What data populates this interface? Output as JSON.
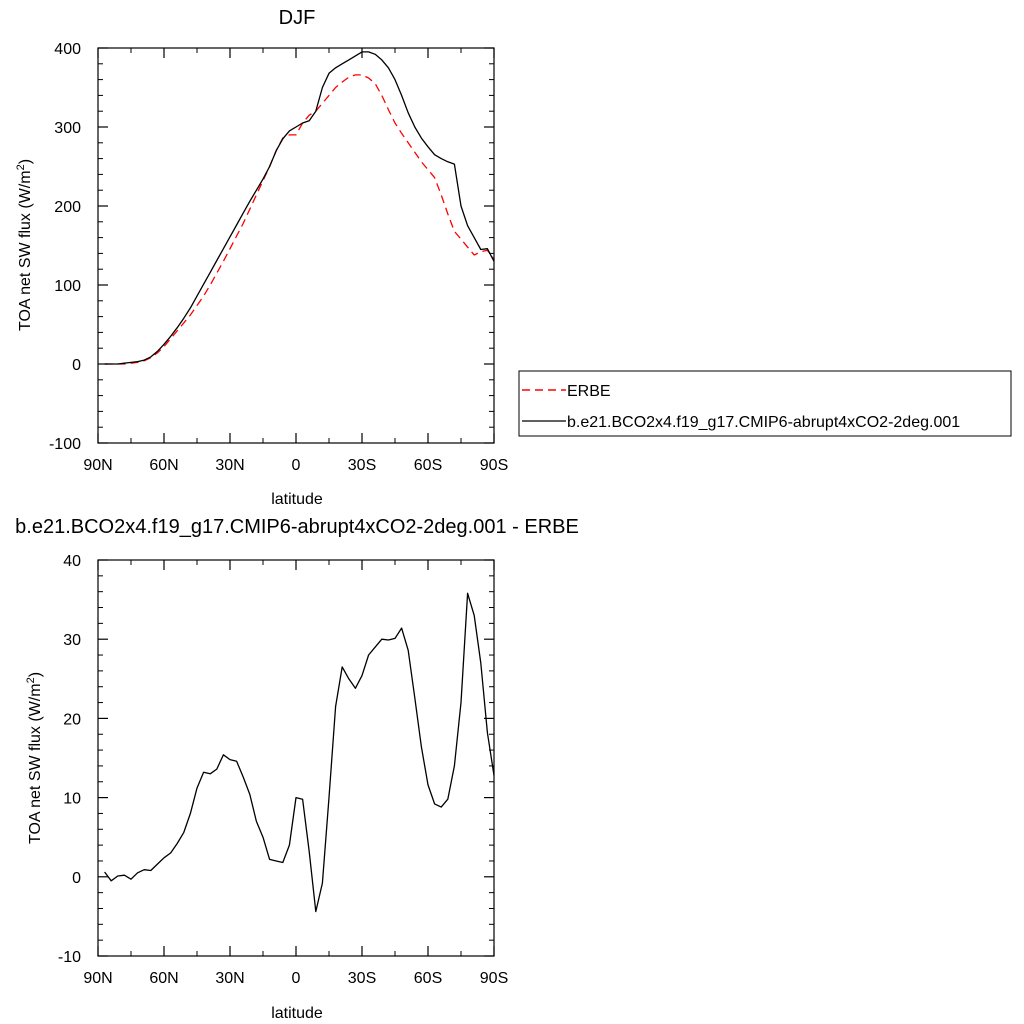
{
  "chart_data": [
    {
      "type": "line",
      "title": "DJF",
      "xlabel": "latitude",
      "ylabel_main": "TOA net SW flux (W/m",
      "ylabel_sup": "2",
      "ylabel_tail": ")",
      "xlim": [
        -90,
        90
      ],
      "ylim": [
        -100,
        400
      ],
      "x_ticks": [
        {
          "value": -90,
          "label": "90N"
        },
        {
          "value": -60,
          "label": "60N"
        },
        {
          "value": -30,
          "label": "30N"
        },
        {
          "value": 0,
          "label": "0"
        },
        {
          "value": 30,
          "label": "30S"
        },
        {
          "value": 60,
          "label": "60S"
        },
        {
          "value": 90,
          "label": "90S"
        }
      ],
      "y_ticks": [
        -100,
        0,
        100,
        200,
        300,
        400
      ],
      "legend_position": "right",
      "series": [
        {
          "name": "ERBE",
          "color": "#ff0000",
          "dash": true,
          "x": [
            -87,
            -84,
            -81,
            -78,
            -75,
            -72,
            -69,
            -66,
            -63,
            -60,
            -57,
            -54,
            -51,
            -48,
            -45,
            -42,
            -39,
            -36,
            -33,
            -30,
            -27,
            -24,
            -21,
            -18,
            -15,
            -12,
            -9,
            -6,
            -3,
            0,
            3,
            6,
            9,
            12,
            15,
            18,
            21,
            24,
            27,
            30,
            33,
            36,
            39,
            42,
            45,
            48,
            51,
            54,
            57,
            60,
            63,
            66,
            69,
            72,
            75,
            78,
            81,
            84,
            87,
            90
          ],
          "y": [
            0,
            0,
            0,
            0,
            1,
            2,
            4,
            8,
            14,
            22,
            32,
            42,
            52,
            62,
            74,
            86,
            100,
            115,
            130,
            146,
            162,
            178,
            196,
            214,
            232,
            250,
            270,
            286,
            290,
            290,
            305,
            315,
            320,
            330,
            340,
            350,
            357,
            363,
            366,
            366,
            362,
            355,
            340,
            322,
            305,
            292,
            280,
            268,
            256,
            246,
            236,
            214,
            190,
            168,
            158,
            148,
            138,
            142,
            144,
            132
          ]
        },
        {
          "name": "b.e21.BCO2x4.f19_g17.CMIP6-abrupt4xCO2-2deg.001",
          "color": "#000000",
          "dash": false,
          "x": [
            -87,
            -84,
            -81,
            -78,
            -75,
            -72,
            -69,
            -66,
            -63,
            -60,
            -57,
            -54,
            -51,
            -48,
            -45,
            -42,
            -39,
            -36,
            -33,
            -30,
            -27,
            -24,
            -21,
            -18,
            -15,
            -12,
            -9,
            -6,
            -3,
            0,
            3,
            6,
            9,
            12,
            15,
            18,
            21,
            24,
            27,
            30,
            33,
            36,
            39,
            42,
            45,
            48,
            51,
            54,
            57,
            60,
            63,
            66,
            69,
            72,
            75,
            78,
            81,
            84,
            87,
            90
          ],
          "y": [
            0,
            0,
            0,
            1,
            2,
            3,
            5,
            9,
            16,
            25,
            35,
            46,
            58,
            71,
            86,
            101,
            116,
            131,
            146,
            161,
            176,
            191,
            206,
            220,
            234,
            250,
            270,
            285,
            295,
            300,
            305,
            308,
            320,
            350,
            368,
            375,
            380,
            385,
            390,
            395,
            395,
            392,
            385,
            375,
            360,
            340,
            318,
            300,
            286,
            275,
            265,
            260,
            256,
            253,
            200,
            175,
            160,
            145,
            146,
            130
          ]
        }
      ]
    },
    {
      "type": "line",
      "title": "b.e21.BCO2x4.f19_g17.CMIP6-abrupt4xCO2-2deg.001 - ERBE",
      "xlabel": "latitude",
      "ylabel_main": "TOA net SW flux (W/m",
      "ylabel_sup": "2",
      "ylabel_tail": ")",
      "xlim": [
        -90,
        90
      ],
      "ylim": [
        -10,
        40
      ],
      "x_ticks": [
        {
          "value": -90,
          "label": "90N"
        },
        {
          "value": -60,
          "label": "60N"
        },
        {
          "value": -30,
          "label": "30N"
        },
        {
          "value": 0,
          "label": "0"
        },
        {
          "value": 30,
          "label": "30S"
        },
        {
          "value": 60,
          "label": "60S"
        },
        {
          "value": 90,
          "label": "90S"
        }
      ],
      "y_ticks": [
        -10,
        0,
        10,
        20,
        30,
        40
      ],
      "series": [
        {
          "name": "",
          "color": "#000000",
          "dash": false,
          "x": [
            -87,
            -84,
            -81,
            -78,
            -75,
            -72,
            -69,
            -66,
            -63,
            -60,
            -57,
            -54,
            -51,
            -48,
            -45,
            -42,
            -39,
            -36,
            -33,
            -30,
            -27,
            -24,
            -21,
            -18,
            -15,
            -12,
            -9,
            -6,
            -3,
            0,
            3,
            6,
            9,
            12,
            15,
            18,
            21,
            24,
            27,
            30,
            33,
            36,
            39,
            42,
            45,
            48,
            51,
            54,
            57,
            60,
            63,
            66,
            69,
            72,
            75,
            78,
            81,
            84,
            87,
            90
          ],
          "y": [
            0.6,
            -0.5,
            0.1,
            0.2,
            -0.3,
            0.5,
            0.9,
            0.8,
            1.6,
            2.4,
            3.0,
            4.2,
            5.6,
            8.0,
            11.2,
            13.2,
            13.0,
            13.6,
            15.4,
            14.8,
            14.6,
            12.6,
            10.4,
            7.0,
            5.0,
            2.2,
            2.0,
            1.8,
            4.0,
            10.0,
            9.8,
            3.2,
            -4.4,
            -0.8,
            10.0,
            21.5,
            26.5,
            25.0,
            23.8,
            25.4,
            28.0,
            29.0,
            30.0,
            29.9,
            30.1,
            31.4,
            28.6,
            22.6,
            16.4,
            11.6,
            9.2,
            8.8,
            9.8,
            14.0,
            22.0,
            35.8,
            33.0,
            27.0,
            18.2,
            12.8
          ]
        }
      ]
    }
  ]
}
